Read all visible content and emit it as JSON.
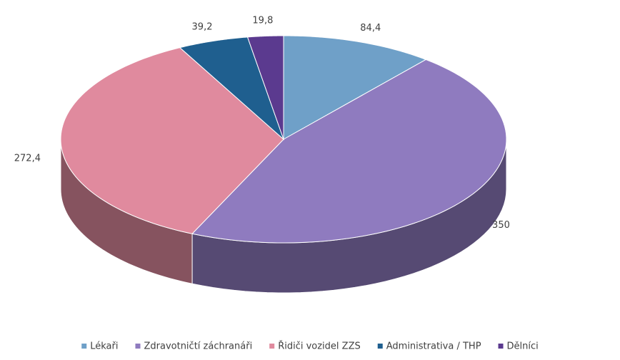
{
  "chart_data": {
    "type": "pie3d",
    "categories": [
      "Lékaři",
      "Zdravotničtí záchranáři",
      "Řidiči vozidel ZZS",
      "Administrativa / THP",
      "Dělníci"
    ],
    "values": [
      84.4,
      350,
      272.4,
      39.2,
      19.8
    ],
    "value_labels": [
      "84,4",
      "350",
      "272,4",
      "39,2",
      "19,8"
    ],
    "colors": [
      "#6fa0c8",
      "#8f7bbf",
      "#e08a9e",
      "#1f5f8f",
      "#5b3a8f"
    ],
    "legend": "bottom"
  }
}
